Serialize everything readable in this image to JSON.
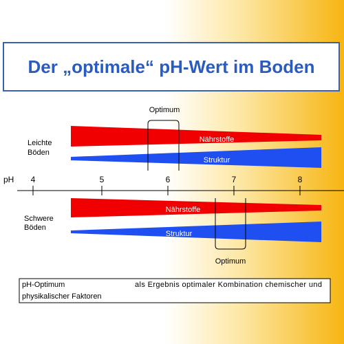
{
  "title": "Der „optimale“ pH-Wert im Boden",
  "axis": {
    "label": "pH",
    "ticks": [
      4,
      5,
      6,
      7,
      8
    ]
  },
  "upper": {
    "group": [
      "Leichte",
      "Böden"
    ],
    "optimum": "Optimum",
    "bars": [
      "Nährstoffe",
      "Struktur"
    ]
  },
  "lower": {
    "group": [
      "Schwere",
      "Böden"
    ],
    "optimum": "Optimum",
    "bars": [
      "Nährstoffe",
      "Struktur"
    ]
  },
  "footer": {
    "lead": "pH-Optimum",
    "text": "als Ergebnis optimaler Kombination chemischer und",
    "line2": "physikalischer Faktoren"
  }
}
